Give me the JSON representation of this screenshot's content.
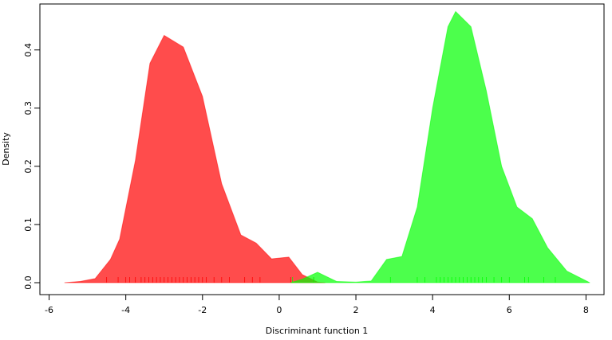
{
  "chart_data": {
    "type": "area",
    "xlabel": "Discriminant function 1",
    "ylabel": "Density",
    "xlim": [
      -6.24,
      8.47
    ],
    "ylim": [
      -0.0205,
      0.479
    ],
    "xticks": [
      -6,
      -4,
      -2,
      0,
      2,
      4,
      6,
      8
    ],
    "yticks": [
      {
        "value": 0,
        "label": "0.0"
      },
      0.1,
      0.2,
      0.3,
      0.4
    ],
    "series": [
      {
        "color": "#ff0000",
        "x": [
          -5.6,
          -5.2,
          -4.8,
          -4.4,
          -4.16,
          -3.75,
          -3.37,
          -3.0,
          -2.5,
          -2.0,
          -1.5,
          -1.0,
          -0.6,
          -0.2,
          0.25,
          0.6,
          1.0,
          1.2
        ],
        "values": [
          0,
          0.002,
          0.007,
          0.04,
          0.075,
          0.21,
          0.377,
          0.425,
          0.405,
          0.32,
          0.17,
          0.082,
          0.068,
          0.041,
          0.044,
          0.014,
          0.001,
          0
        ],
        "rug": [
          -4.5,
          -4.2,
          -4.0,
          -3.9,
          -3.75,
          -3.6,
          -3.5,
          -3.4,
          -3.3,
          -3.2,
          -3.1,
          -3.0,
          -2.9,
          -2.8,
          -2.7,
          -2.6,
          -2.5,
          -2.4,
          -2.3,
          -2.2,
          -2.1,
          -2.0,
          -1.9,
          -1.7,
          -1.5,
          -1.3,
          -0.9,
          -0.7,
          -0.5,
          0.3,
          0.9
        ]
      },
      {
        "color": "#00ff00",
        "x": [
          0.3,
          0.6,
          1.0,
          1.5,
          2.0,
          2.4,
          2.8,
          3.2,
          3.6,
          4.0,
          4.4,
          4.6,
          5.0,
          5.4,
          5.8,
          6.2,
          6.6,
          7.0,
          7.5,
          8.1
        ],
        "values": [
          0,
          0.006,
          0.018,
          0.002,
          0.001,
          0.003,
          0.04,
          0.045,
          0.13,
          0.3,
          0.44,
          0.466,
          0.44,
          0.33,
          0.2,
          0.13,
          0.11,
          0.06,
          0.02,
          0
        ],
        "rug": [
          0.35,
          0.9,
          2.9,
          3.6,
          3.8,
          4.1,
          4.2,
          4.3,
          4.4,
          4.5,
          4.6,
          4.7,
          4.8,
          4.9,
          5.0,
          5.1,
          5.2,
          5.3,
          5.4,
          5.6,
          5.8,
          6.0,
          6.4,
          6.5,
          6.9,
          7.2
        ]
      }
    ]
  }
}
